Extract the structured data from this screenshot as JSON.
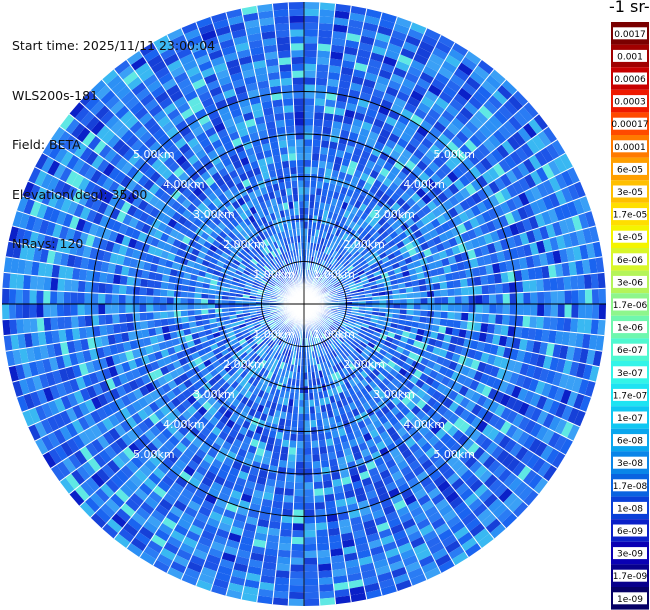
{
  "header": {
    "start_time": "Start time: 2025/11/11 23:00:04",
    "instrument": "WLS200s-181",
    "field": "Field: BETA",
    "elevation": "Elevation(deg): 35.00",
    "nrays": "NRays: 120"
  },
  "colorbar": {
    "title_fragment": "-1 sr-",
    "labels": [
      "0.0017",
      "0.001",
      "0.0006",
      "0.0003",
      "0.00017",
      "0.0001",
      "6e-05",
      "3e-05",
      "1.7e-05",
      "1e-05",
      "6e-06",
      "3e-06",
      "1.7e-06",
      "1e-06",
      "6e-07",
      "3e-07",
      "1.7e-07",
      "1e-07",
      "6e-08",
      "3e-08",
      "1.7e-08",
      "1e-08",
      "6e-09",
      "3e-09",
      "1.7e-09",
      "1e-09"
    ],
    "colors": [
      "#7a0000",
      "#a10000",
      "#c80000",
      "#ee1a00",
      "#ff4a00",
      "#ff7a00",
      "#ff9f00",
      "#ffbf00",
      "#ffde00",
      "#f4f400",
      "#d8f62a",
      "#b4f45a",
      "#8ef68c",
      "#6ff7ae",
      "#4ff8d0",
      "#33f4e8",
      "#1fe3f2",
      "#10c7f2",
      "#0aa6ee",
      "#0a85e8",
      "#0a63e0",
      "#0a40d8",
      "#0a20c8",
      "#0a00b4",
      "#08008c",
      "#060066"
    ]
  },
  "range_labels": [
    "1.00km",
    "2.00km",
    "3.00km",
    "4.00km",
    "5.00km"
  ],
  "chart_data": {
    "type": "heatmap",
    "title": "",
    "field": "BETA",
    "elevation_deg": 35.0,
    "n_rays": 120,
    "range_rings_km": [
      1,
      2,
      3,
      4,
      5
    ],
    "max_range_km": 5.0,
    "scale": "log",
    "color_range": [
      1e-09,
      0.0017
    ],
    "dominant_values": "approximately 1e-08 to 1e-07 across the scan"
  }
}
